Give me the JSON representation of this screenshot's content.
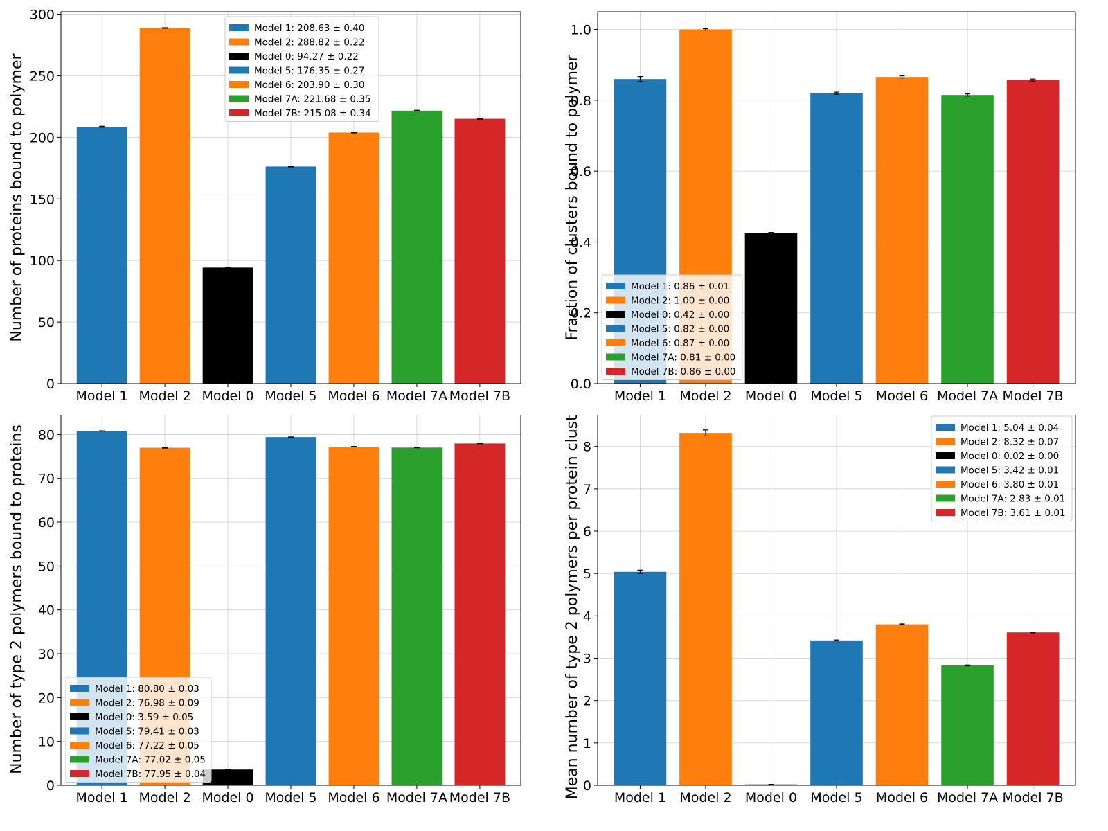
{
  "colors": {
    "blue": "#1f77b4",
    "orange": "#ff7f0e",
    "black": "#000000",
    "green": "#2ca02c",
    "red": "#d62728",
    "grid": "#d3d3d3"
  },
  "chart_data": [
    {
      "type": "bar",
      "categories": [
        "Model 1",
        "Model 2",
        "Model 0",
        "Model 5",
        "Model 6",
        "Model 7A",
        "Model 7B"
      ],
      "values": [
        208.63,
        288.82,
        94.27,
        176.35,
        203.9,
        221.68,
        215.08
      ],
      "errors": [
        0.4,
        0.22,
        0.22,
        0.27,
        0.3,
        0.35,
        0.34
      ],
      "bar_colors": [
        "#1f77b4",
        "#ff7f0e",
        "#000000",
        "#1f77b4",
        "#ff7f0e",
        "#2ca02c",
        "#d62728"
      ],
      "ylabel": "Number of proteins bound to polymer",
      "ylim": [
        0,
        302
      ],
      "yticks": [
        0,
        50,
        100,
        150,
        200,
        250,
        300
      ],
      "ytick_labels": [
        "0",
        "50",
        "100",
        "150",
        "200",
        "250",
        "300"
      ],
      "grid": true,
      "legend_position": "upper-center",
      "legend": [
        "Model 1: 208.63 ± 0.40",
        "Model 2: 288.82 ± 0.22",
        "Model 0: 94.27 ± 0.22",
        "Model 5: 176.35 ± 0.27",
        "Model 6: 203.90 ± 0.30",
        "Model 7A: 221.68 ± 0.35",
        "Model 7B: 215.08 ± 0.34"
      ]
    },
    {
      "type": "bar",
      "categories": [
        "Model 1",
        "Model 2",
        "Model 0",
        "Model 5",
        "Model 6",
        "Model 7A",
        "Model 7B"
      ],
      "values": [
        0.86,
        1.0,
        0.425,
        0.82,
        0.866,
        0.815,
        0.857
      ],
      "errors": [
        0.007,
        0.002,
        0.002,
        0.003,
        0.003,
        0.003,
        0.003
      ],
      "bar_colors": [
        "#1f77b4",
        "#ff7f0e",
        "#000000",
        "#1f77b4",
        "#ff7f0e",
        "#2ca02c",
        "#d62728"
      ],
      "ylabel": "Fraction of clusters bound to polymer",
      "ylim": [
        0,
        1.05
      ],
      "yticks": [
        0,
        0.2,
        0.4,
        0.6,
        0.8,
        1.0
      ],
      "ytick_labels": [
        "0.0",
        "0.2",
        "0.4",
        "0.6",
        "0.8",
        "1.0"
      ],
      "grid": true,
      "legend_position": "lower-left",
      "legend": [
        "Model 1: 0.86 ± 0.01",
        "Model 2: 1.00 ± 0.00",
        "Model 0: 0.42 ± 0.00",
        "Model 5: 0.82 ± 0.00",
        "Model 6: 0.87 ± 0.00",
        "Model 7A: 0.81 ± 0.00",
        "Model 7B: 0.86 ± 0.00"
      ]
    },
    {
      "type": "bar",
      "categories": [
        "Model 1",
        "Model 2",
        "Model 0",
        "Model 5",
        "Model 6",
        "Model 7A",
        "Model 7B"
      ],
      "values": [
        80.8,
        76.98,
        3.59,
        79.41,
        77.22,
        77.02,
        77.95
      ],
      "errors": [
        0.03,
        0.09,
        0.05,
        0.03,
        0.05,
        0.05,
        0.04
      ],
      "bar_colors": [
        "#1f77b4",
        "#ff7f0e",
        "#000000",
        "#1f77b4",
        "#ff7f0e",
        "#2ca02c",
        "#d62728"
      ],
      "ylabel": "Number of type 2 polymers bound to proteins",
      "ylim": [
        0,
        84.8
      ],
      "yticks": [
        0,
        10,
        20,
        30,
        40,
        50,
        60,
        70,
        80
      ],
      "ytick_labels": [
        "0",
        "10",
        "20",
        "30",
        "40",
        "50",
        "60",
        "70",
        "80"
      ],
      "grid": true,
      "legend_position": "lower-left",
      "legend": [
        "Model 1: 80.80 ± 0.03",
        "Model 2: 76.98 ± 0.09",
        "Model 0: 3.59 ± 0.05",
        "Model 5: 79.41 ± 0.03",
        "Model 6: 77.22 ± 0.05",
        "Model 7A: 77.02 ± 0.05",
        "Model 7B: 77.95 ± 0.04"
      ]
    },
    {
      "type": "bar",
      "categories": [
        "Model 1",
        "Model 2",
        "Model 0",
        "Model 5",
        "Model 6",
        "Model 7A",
        "Model 7B"
      ],
      "values": [
        5.04,
        8.32,
        0.02,
        3.42,
        3.8,
        2.83,
        3.61
      ],
      "errors": [
        0.04,
        0.07,
        0.0,
        0.01,
        0.01,
        0.01,
        0.01
      ],
      "bar_colors": [
        "#1f77b4",
        "#ff7f0e",
        "#000000",
        "#1f77b4",
        "#ff7f0e",
        "#2ca02c",
        "#d62728"
      ],
      "ylabel": "Mean number of type 2 polymers per protein cluster",
      "ylim": [
        0,
        8.78
      ],
      "yticks": [
        0,
        1,
        2,
        3,
        4,
        5,
        6,
        7,
        8
      ],
      "ytick_labels": [
        "0",
        "1",
        "2",
        "3",
        "4",
        "5",
        "6",
        "7",
        "8"
      ],
      "grid": true,
      "legend_position": "upper-right",
      "legend": [
        "Model 1: 5.04 ± 0.04",
        "Model 2: 8.32 ± 0.07",
        "Model 0: 0.02 ± 0.00",
        "Model 5: 3.42 ± 0.01",
        "Model 6: 3.80 ± 0.01",
        "Model 7A: 2.83 ± 0.01",
        "Model 7B: 3.61 ± 0.01"
      ]
    }
  ]
}
